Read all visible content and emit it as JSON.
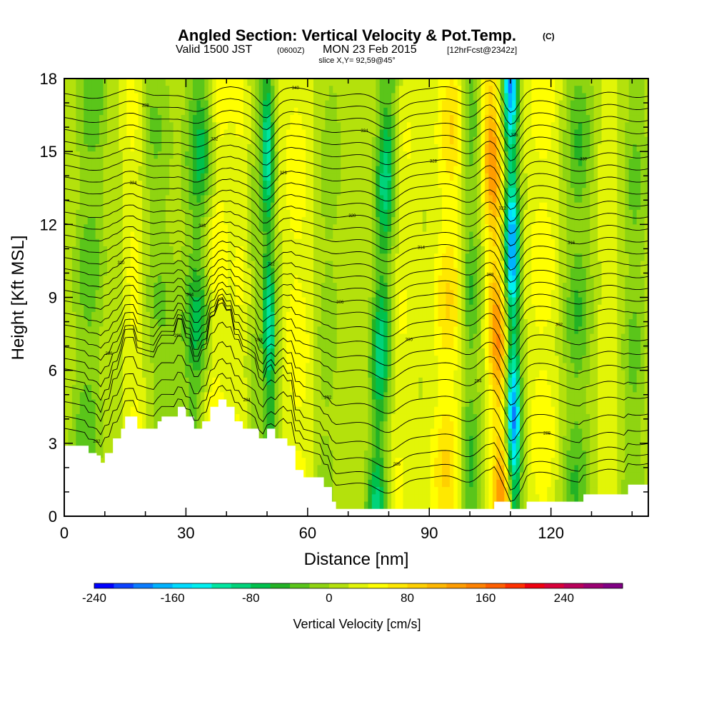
{
  "title": {
    "main": "Angled Section: Vertical Velocity & Pot.Temp.",
    "copyright": "(C)",
    "valid_prefix": "Valid 1500 JST",
    "valid_utc": "(0600Z)",
    "valid_date": "MON 23 Feb 2015",
    "forecast": "[12hrFcst@2342z]",
    "slice": "slice X,Y= 92,59@45°"
  },
  "chart_data": {
    "type": "heatmap",
    "title": "Angled Section: Vertical Velocity & Pot.Temp.",
    "xlabel": "Distance [nm]",
    "ylabel": "Height [Kft MSL]",
    "xlim": [
      0,
      144
    ],
    "ylim": [
      0,
      18
    ],
    "xticks": [
      0,
      30,
      60,
      90,
      120
    ],
    "yticks": [
      0,
      3,
      6,
      9,
      12,
      15,
      18
    ],
    "xtick_labels": [
      "0",
      "30",
      "60",
      "90",
      "120"
    ],
    "ytick_labels": [
      "0",
      "3",
      "6",
      "9",
      "12",
      "15",
      "18"
    ],
    "grid": false,
    "background_level_cm_s": 15,
    "velocity_bands": [
      {
        "x_center": 7,
        "x_base": 5,
        "half_width": 3.5,
        "value": -55
      },
      {
        "x_center": 17,
        "x_base": 18,
        "half_width": 2.5,
        "value": 40
      },
      {
        "x_center": 22,
        "x_base": 25,
        "half_width": 4.0,
        "value": -40
      },
      {
        "x_center": 34,
        "x_base": 32,
        "half_width": 3.5,
        "value": -90
      },
      {
        "x_center": 38,
        "x_base": 36,
        "half_width": 3.0,
        "value": 55
      },
      {
        "x_center": 44,
        "x_base": 43,
        "half_width": 3.0,
        "value": 30
      },
      {
        "x_center": 50,
        "x_base": 51,
        "half_width": 1.6,
        "value": -130
      },
      {
        "x_center": 47,
        "x_base": 47,
        "half_width": 2.0,
        "value": -35
      },
      {
        "x_center": 57,
        "x_base": 58,
        "half_width": 3.5,
        "value": 45
      },
      {
        "x_center": 66,
        "x_base": 64,
        "half_width": 3.0,
        "value": -30
      },
      {
        "x_center": 80,
        "x_base": 77,
        "half_width": 2.5,
        "value": -120
      },
      {
        "x_center": 84,
        "x_base": 82,
        "half_width": 4.0,
        "value": 30
      },
      {
        "x_center": 96,
        "x_base": 94,
        "half_width": 4.0,
        "value": 70
      },
      {
        "x_center": 100,
        "x_base": 100,
        "half_width": 2.5,
        "value": -70
      },
      {
        "x_center": 105,
        "x_base": 108,
        "half_width": 2.4,
        "value": 130
      },
      {
        "x_center": 110,
        "x_base": 111,
        "half_width": 1.8,
        "value": -210
      },
      {
        "x_center": 118,
        "x_base": 118,
        "half_width": 4.0,
        "value": 45
      },
      {
        "x_center": 127,
        "x_base": 126,
        "half_width": 3.5,
        "value": -60
      },
      {
        "x_center": 134,
        "x_base": 134,
        "half_width": 3.0,
        "value": 25
      },
      {
        "x_center": 141,
        "x_base": 140,
        "half_width": 3.0,
        "value": -45
      }
    ],
    "terrain_height_kft": [
      [
        0,
        2.9
      ],
      [
        3,
        2.9
      ],
      [
        5,
        2.9
      ],
      [
        6,
        2.6
      ],
      [
        8,
        2.5
      ],
      [
        9,
        2.2
      ],
      [
        10,
        2.6
      ],
      [
        12,
        3.2
      ],
      [
        14,
        3.6
      ],
      [
        15,
        4.1
      ],
      [
        17,
        4.1
      ],
      [
        18,
        3.6
      ],
      [
        20,
        3.6
      ],
      [
        22,
        3.6
      ],
      [
        23,
        3.9
      ],
      [
        24,
        4.1
      ],
      [
        26,
        4.1
      ],
      [
        28,
        4.5
      ],
      [
        30,
        4.1
      ],
      [
        31,
        4.1
      ],
      [
        32,
        3.6
      ],
      [
        34,
        3.9
      ],
      [
        36,
        4.5
      ],
      [
        38,
        4.8
      ],
      [
        40,
        4.5
      ],
      [
        42,
        3.9
      ],
      [
        44,
        3.6
      ],
      [
        46,
        3.6
      ],
      [
        48,
        3.2
      ],
      [
        50,
        3.6
      ],
      [
        52,
        3.2
      ],
      [
        54,
        3.2
      ],
      [
        55,
        2.9
      ],
      [
        57,
        1.9
      ],
      [
        59,
        1.6
      ],
      [
        62,
        1.6
      ],
      [
        64,
        1.2
      ],
      [
        66,
        0.6
      ],
      [
        67,
        0.3
      ],
      [
        100,
        0.3
      ],
      [
        104,
        0.3
      ],
      [
        106,
        0.6
      ],
      [
        109,
        0.6
      ],
      [
        110,
        0.3
      ],
      [
        113,
        0.3
      ],
      [
        114,
        0.6
      ],
      [
        120,
        0.6
      ],
      [
        127,
        0.6
      ],
      [
        128,
        0.9
      ],
      [
        138,
        0.9
      ],
      [
        139,
        1.3
      ],
      [
        144,
        1.3
      ]
    ],
    "isentropes_theta_K": [
      {
        "theta": 282,
        "height_kft": 1.2
      },
      {
        "theta": 284,
        "height_kft": 1.7
      },
      {
        "theta": 286,
        "height_kft": 2.3
      },
      {
        "theta": 288,
        "height_kft": 3.0
      },
      {
        "theta": 290,
        "height_kft": 3.8
      },
      {
        "theta": 292,
        "height_kft": 4.6
      },
      {
        "theta": 294,
        "height_kft": 5.3
      },
      {
        "theta": 296,
        "height_kft": 6.0
      },
      {
        "theta": 298,
        "height_kft": 6.6
      },
      {
        "theta": 300,
        "height_kft": 7.2
      },
      {
        "theta": 302,
        "height_kft": 7.8
      },
      {
        "theta": 304,
        "height_kft": 8.4
      },
      {
        "theta": 306,
        "height_kft": 8.9
      },
      {
        "theta": 308,
        "height_kft": 9.4
      },
      {
        "theta": 310,
        "height_kft": 9.9
      },
      {
        "theta": 312,
        "height_kft": 10.4
      },
      {
        "theta": 314,
        "height_kft": 10.9
      },
      {
        "theta": 316,
        "height_kft": 11.4
      },
      {
        "theta": 318,
        "height_kft": 11.9
      },
      {
        "theta": 320,
        "height_kft": 12.4
      },
      {
        "theta": 322,
        "height_kft": 12.9
      },
      {
        "theta": 324,
        "height_kft": 13.4
      },
      {
        "theta": 326,
        "height_kft": 13.9
      },
      {
        "theta": 328,
        "height_kft": 14.4
      },
      {
        "theta": 330,
        "height_kft": 14.9
      },
      {
        "theta": 332,
        "height_kft": 15.4
      },
      {
        "theta": 334,
        "height_kft": 15.9
      },
      {
        "theta": 336,
        "height_kft": 16.4
      },
      {
        "theta": 338,
        "height_kft": 16.9
      },
      {
        "theta": 340,
        "height_kft": 17.4
      }
    ],
    "colorbar": {
      "title": "Vertical Velocity [cm/s]",
      "min": -240,
      "max": 300,
      "step": 20,
      "tick_values": [
        -240,
        -160,
        -80,
        0,
        80,
        160,
        240
      ],
      "tick_labels": [
        "-240",
        "-160",
        "-80",
        "0",
        "80",
        "160",
        "240"
      ],
      "colors": [
        "#0000ff",
        "#0c42ff",
        "#0a7cff",
        "#00b2ff",
        "#00dcff",
        "#00f0f0",
        "#00e6a0",
        "#00d37a",
        "#00c14c",
        "#23b225",
        "#5ac51a",
        "#8fd411",
        "#b4e10c",
        "#e2f507",
        "#ffff00",
        "#ffe800",
        "#ffd000",
        "#ffb800",
        "#ff9d00",
        "#ff8200",
        "#ff5f00",
        "#ff3000",
        "#ef0010",
        "#d8003a",
        "#b8005a",
        "#9a0072",
        "#800084"
      ]
    }
  }
}
